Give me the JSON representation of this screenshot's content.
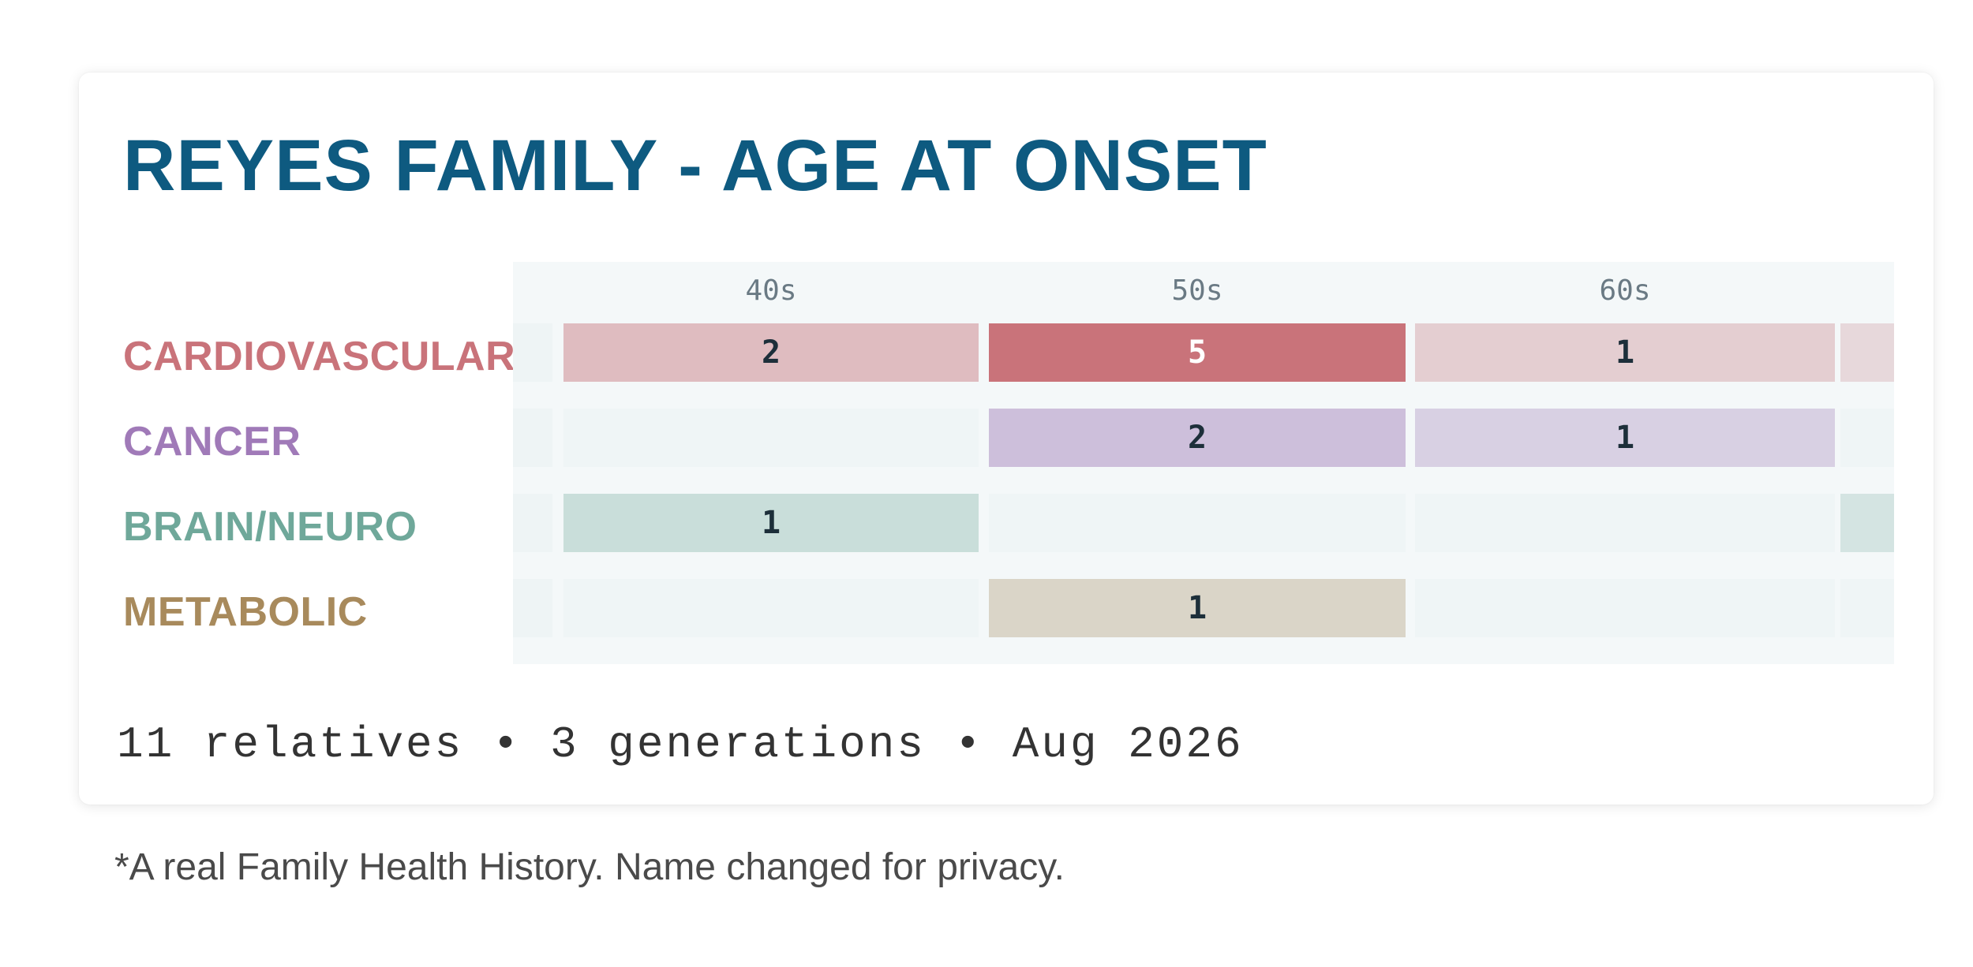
{
  "card": {
    "title": "REYES FAMILY - AGE AT ONSET",
    "footer": "11 relatives • 3 generations • Aug 2026"
  },
  "note": "*A real Family Health History. Name changed for privacy.",
  "colors": {
    "title": "#0e5a80",
    "cardiovascular": "#c9737a",
    "cancer": "#a07ab8",
    "brain_neuro": "#6fa89a",
    "metabolic": "#a88a5c"
  },
  "chart_data": {
    "type": "heatmap",
    "title": "REYES FAMILY - AGE AT ONSET",
    "x": [
      "40s",
      "50s",
      "60s",
      ""
    ],
    "y": [
      "CARDIOVASCULAR",
      "CANCER",
      "BRAIN/NEURO",
      "METABOLIC"
    ],
    "values": [
      [
        2,
        5,
        1,
        null
      ],
      [
        null,
        2,
        1,
        null
      ],
      [
        1,
        null,
        null,
        null
      ],
      [
        null,
        1,
        null,
        null
      ]
    ],
    "partial_column_shaded": [
      true,
      false,
      true,
      false
    ],
    "max_value": 5
  }
}
